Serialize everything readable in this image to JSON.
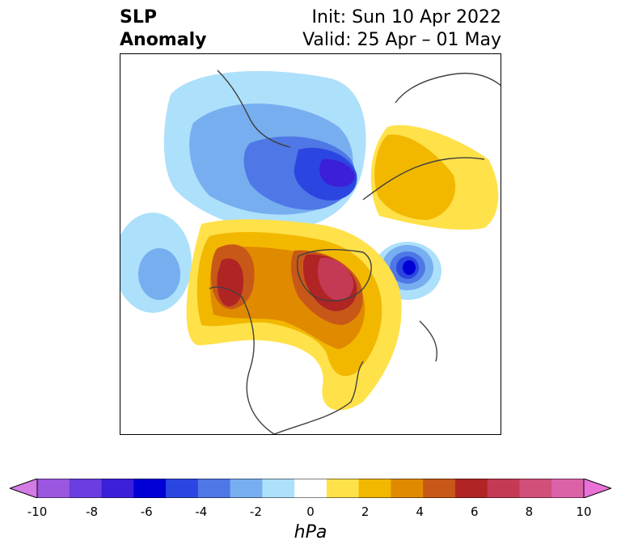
{
  "header": {
    "title_line1": "SLP",
    "title_line2": "Anomaly",
    "init_line": "Init: Sun 10 Apr 2022",
    "valid_line": "Valid: 25 Apr – 01 May"
  },
  "map": {
    "projection": "north polar stereographic",
    "land_outline_color": "#404040"
  },
  "colorbar": {
    "units": "hPa",
    "ticks": [
      "-10",
      "-8",
      "-6",
      "-4",
      "-2",
      "0",
      "2",
      "4",
      "6",
      "8",
      "10"
    ],
    "levels": [
      -10,
      -9,
      -8,
      -7,
      -6,
      -5,
      -4,
      -3,
      -2,
      -1,
      1,
      2,
      3,
      4,
      5,
      6,
      7,
      8,
      9,
      10
    ],
    "colors": [
      "#d47be6",
      "#9b57e0",
      "#6a3ee0",
      "#3c1fd8",
      "#0000d6",
      "#2b46e0",
      "#4f78e6",
      "#77aef0",
      "#ade0fa",
      "#ffffff",
      "#ffe14a",
      "#f2b800",
      "#e08a00",
      "#c85818",
      "#b02424",
      "#c43a55",
      "#d0507a",
      "#dc62a8",
      "#e872d8"
    ],
    "extend": "both"
  }
}
